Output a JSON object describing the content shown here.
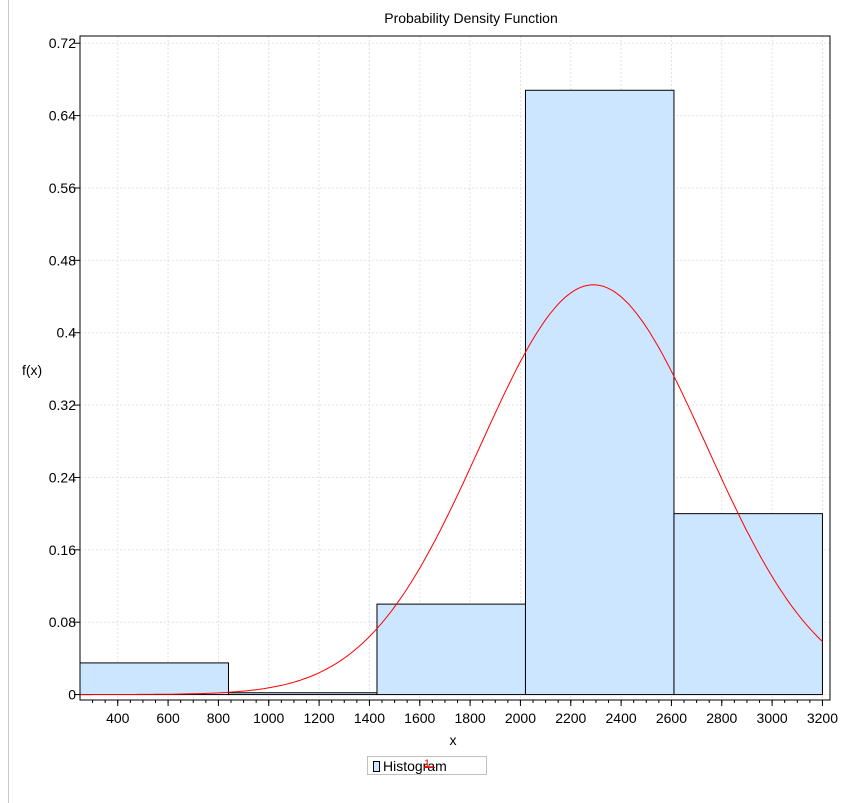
{
  "chart_data": {
    "type": "bar",
    "title": "Probability Density Function",
    "xlabel": "x",
    "ylabel": "f(x)",
    "xlim": [
      250,
      3230
    ],
    "ylim": [
      -0.006,
      0.728
    ],
    "x_ticks": [
      400,
      600,
      800,
      1000,
      1200,
      1400,
      1600,
      1800,
      2000,
      2200,
      2400,
      2600,
      2800,
      3000,
      3200
    ],
    "y_ticks": [
      0,
      0.08,
      0.16,
      0.24,
      0.32,
      0.4,
      0.48,
      0.56,
      0.64,
      0.72
    ],
    "grid": true,
    "legend_position": "bottom-center",
    "series": [
      {
        "name": "Histogram",
        "kind": "histogram",
        "bins": [
          {
            "start": 250,
            "end": 840,
            "value": 0.035
          },
          {
            "start": 840,
            "end": 1430,
            "value": 0.002
          },
          {
            "start": 1430,
            "end": 2020,
            "value": 0.1
          },
          {
            "start": 2020,
            "end": 2610,
            "value": 0.668
          },
          {
            "start": 2610,
            "end": 3200,
            "value": 0.2
          }
        ]
      },
      {
        "name": "1",
        "kind": "density-curve",
        "curve": {
          "mean": 2290,
          "sd": 450,
          "peak": 0.453,
          "x_start": 250,
          "x_end": 3200
        }
      }
    ],
    "colors": {
      "bar_fill": "#cce6ff",
      "bar_stroke": "#000000",
      "curve": "#ff0000",
      "grid": "#e2e2e2"
    }
  }
}
